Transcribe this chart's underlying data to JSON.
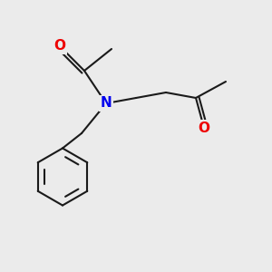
{
  "bg_color": "#ebebeb",
  "bond_color": "#1a1a1a",
  "N_color": "#0000ee",
  "O_color": "#ee0000",
  "bond_width": 1.5,
  "font_size": 11,
  "N_label": "N",
  "O_label": "O",
  "fig_width": 3.0,
  "fig_height": 3.0,
  "dpi": 100,
  "xlim": [
    0,
    10
  ],
  "ylim": [
    0,
    10
  ]
}
